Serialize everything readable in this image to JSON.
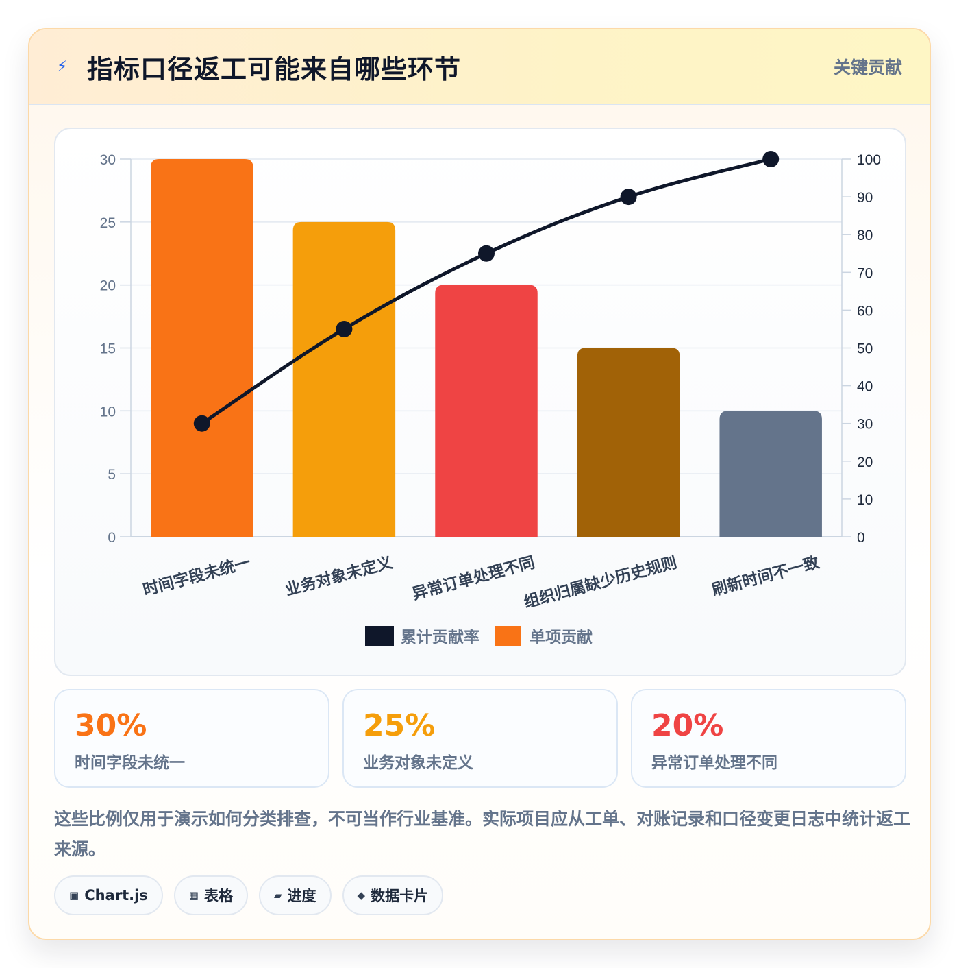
{
  "header": {
    "title": "指标口径返工可能来自哪些环节",
    "badge": "关键贡献",
    "icon": "lightning-icon"
  },
  "chart_data": {
    "type": "bar",
    "title": "",
    "categories": [
      "时间字段未统一",
      "业务对象未定义",
      "异常订单处理不同",
      "组织归属缺少历史规则",
      "刷新时间不一致"
    ],
    "series": [
      {
        "name": "单项贡献",
        "type": "bar",
        "axis": "left",
        "values": [
          30,
          25,
          20,
          15,
          10
        ],
        "colors": [
          "#f97316",
          "#f59e0b",
          "#ef4444",
          "#a16207",
          "#64748b"
        ]
      },
      {
        "name": "累计贡献率",
        "type": "line",
        "axis": "right",
        "values": [
          30,
          55,
          75,
          90,
          100
        ],
        "color": "#0f172a"
      }
    ],
    "y_left": {
      "min": 0,
      "max": 30,
      "ticks": [
        "0",
        "5",
        "10",
        "15",
        "20",
        "25",
        "30"
      ]
    },
    "y_right": {
      "min": 0,
      "max": 100,
      "ticks": [
        "0",
        "10",
        "20",
        "30",
        "40",
        "50",
        "60",
        "70",
        "80",
        "90",
        "100"
      ]
    },
    "grid": true,
    "legend_position": "bottom",
    "legend": [
      {
        "label": "累计贡献率",
        "color": "#0f172a"
      },
      {
        "label": "单项贡献",
        "color": "#f97316"
      }
    ]
  },
  "stats": [
    {
      "value": "30%",
      "label": "时间字段未统一",
      "color": "#f97316"
    },
    {
      "value": "25%",
      "label": "业务对象未定义",
      "color": "#f59e0b"
    },
    {
      "value": "20%",
      "label": "异常订单处理不同",
      "color": "#ef4444"
    }
  ],
  "note": "这些比例仅用于演示如何分类排查，不可当作行业基准。实际项目应从工单、对账记录和口径变更日志中统计返工来源。",
  "tags": [
    {
      "icon": "▣",
      "icon_name": "chart-icon",
      "label": "Chart.js"
    },
    {
      "icon": "▦",
      "icon_name": "table-icon",
      "label": "表格"
    },
    {
      "icon": "▰",
      "icon_name": "progress-icon",
      "label": "进度"
    },
    {
      "icon": "◆",
      "icon_name": "data-card-icon",
      "label": "数据卡片"
    }
  ]
}
